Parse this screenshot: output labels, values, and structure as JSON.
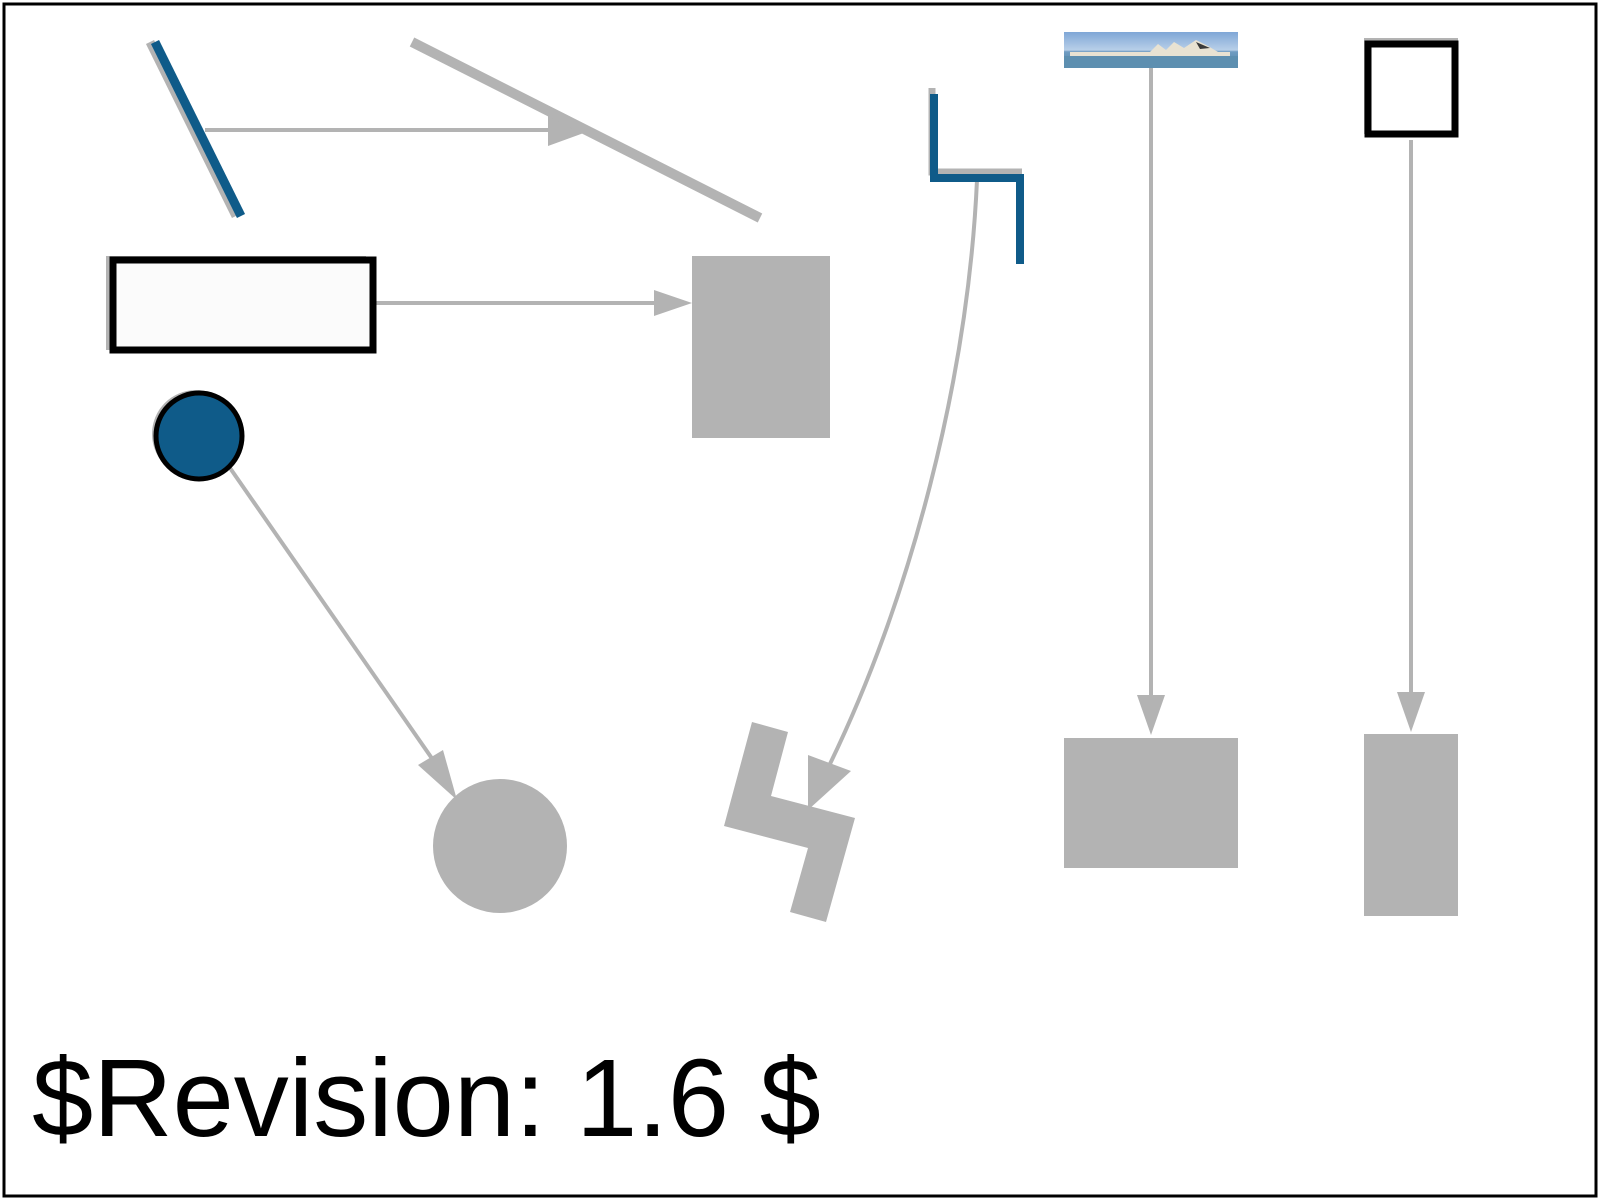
{
  "revision_label": "$Revision: 1.6 $",
  "colors": {
    "frame": "#000000",
    "shadow": "#b3b3b3",
    "blue": "#0f5b89",
    "box_fill": "#fbfbfb",
    "connector": "#b3b3b3",
    "background": "#ffffff"
  },
  "shapes": [
    {
      "name": "blue-slanted-line-shape",
      "kind": "line",
      "color": "blue"
    },
    {
      "name": "gray-slanted-line-shape",
      "kind": "line",
      "color": "shadow"
    },
    {
      "name": "outlined-rectangle-shape",
      "kind": "rectangle",
      "color": "frame"
    },
    {
      "name": "gray-rectangle-shape",
      "kind": "rectangle",
      "color": "shadow"
    },
    {
      "name": "blue-circle-shape",
      "kind": "circle",
      "color": "blue"
    },
    {
      "name": "gray-circle-shape",
      "kind": "circle",
      "color": "shadow"
    },
    {
      "name": "blue-step-polyline-shape",
      "kind": "polyline",
      "color": "blue"
    },
    {
      "name": "gray-zigzag-polygon-shape",
      "kind": "polygon",
      "color": "shadow"
    },
    {
      "name": "opera-house-thumbnail-image",
      "kind": "image",
      "color": "blue"
    },
    {
      "name": "gray-landscape-rectangle-shape",
      "kind": "rectangle",
      "color": "shadow"
    },
    {
      "name": "outlined-square-shape",
      "kind": "rectangle",
      "color": "frame"
    },
    {
      "name": "gray-portrait-rectangle-shape",
      "kind": "rectangle",
      "color": "shadow"
    }
  ],
  "connectors": [
    {
      "name": "connector-line-to-line",
      "kind": "straight-arrow"
    },
    {
      "name": "connector-rect-to-rect",
      "kind": "straight-arrow"
    },
    {
      "name": "connector-circle-to-circle",
      "kind": "straight-arrow"
    },
    {
      "name": "connector-polyline-to-polygon",
      "kind": "curved-arrow"
    },
    {
      "name": "connector-image-to-rect",
      "kind": "straight-arrow"
    },
    {
      "name": "connector-square-to-rect",
      "kind": "straight-arrow"
    }
  ]
}
